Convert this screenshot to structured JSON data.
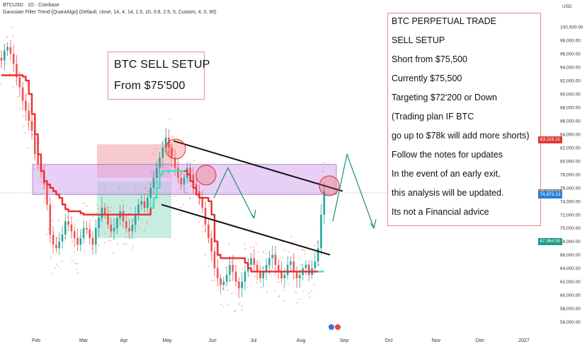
{
  "header": {
    "symbol_line": "BTCUSD · 1D · Coinbase",
    "indicator_line": "Gaussian Filter Trend [QuantAlgo] (Default, close, 14, 4, 14, 1.5, 10, 0.8, 2.5, 5, Custom, 4, 0, 90)"
  },
  "annotation_left": {
    "line1": "BTC SELL SETUP",
    "line2": "From $75'500"
  },
  "annotation_right": {
    "lines": [
      "BTC PERPETUAL TRADE",
      "SELL SETUP",
      "Short from $75,500",
      "Currently $75,500",
      "Targeting $72'200 or Down",
      "(Trading plan IF BTC",
      "go up to $78k will add more shorts)",
      "Follow the notes for updates",
      "In the event of an early exit,",
      "this analysis will be updated.",
      "Its not a Financial advice"
    ]
  },
  "price_tags": [
    {
      "label": "83,118.11",
      "value": 83118.11,
      "color": "#e03a3a"
    },
    {
      "label": "75,237.64",
      "value": 75237.64,
      "color": "#7d7d7d"
    },
    {
      "label": "74,973.13",
      "value": 74973.13,
      "color": "#2a7fd8"
    },
    {
      "label": "67,964.55",
      "value": 67964.55,
      "color": "#1a9c8a"
    }
  ],
  "colors": {
    "bull_candle": "#26a69a",
    "bear_candle": "#ef5350",
    "trend_down": "#e83030",
    "trend_up": "#39e6b0",
    "zone_fill": "#d7a8f0",
    "zone_border": "#7a2fb4",
    "projection": "#1e8c73"
  },
  "chart_data": {
    "type": "line",
    "y_axis": {
      "unit_label": "USD",
      "ticks": [
        "100,000.00",
        "98,000.00",
        "96,000.00",
        "94,000.00",
        "92,000.00",
        "90,000.00",
        "88,000.00",
        "86,000.00",
        "84,000.00",
        "82,000.00",
        "80,000.00",
        "78,000.00",
        "76,000.00",
        "74,000.00",
        "72,000.00",
        "70,000.00",
        "68,000.00",
        "66,000.00",
        "64,000.00",
        "62,000.00",
        "60,000.00",
        "58,000.00",
        "56,000.00"
      ],
      "range": [
        55000,
        101500
      ]
    },
    "x_axis": {
      "ticks": [
        "Feb",
        "Mar",
        "Apr",
        "May",
        "Jun",
        "Jul",
        "Aug",
        "Sep",
        "Oct",
        "Nov",
        "Dec",
        "2027"
      ]
    },
    "series": [
      {
        "role": "price_close_approx",
        "values": [
          95000,
          96500,
          97000,
          96000,
          94500,
          92500,
          91000,
          89000,
          87500,
          86000,
          84500,
          81000,
          79500,
          78500,
          76500,
          73500,
          69000,
          67500,
          67000,
          68000,
          69000,
          71000,
          70500,
          69500,
          68500,
          67500,
          68500,
          70000,
          69800,
          68500,
          67500,
          70000,
          71500,
          73000,
          72000,
          70500,
          69500,
          70000,
          71500,
          72500,
          71000,
          70000,
          69500,
          70500,
          72000,
          73500,
          74000,
          73000,
          74500,
          76000,
          77500,
          79000,
          80500,
          82000,
          83500,
          82000,
          80500,
          79000,
          77500,
          76500,
          77500,
          79000,
          78000,
          76500,
          75500,
          74500,
          73000,
          70500,
          68500,
          66500,
          64000,
          62500,
          61500,
          62000,
          63000,
          64500,
          63500,
          62000,
          61000,
          62000,
          63500,
          64500,
          65500,
          64500,
          63500,
          62500,
          63500,
          64500,
          65500,
          66000,
          64500,
          63500,
          62500,
          63000,
          64500,
          65000,
          63500,
          62500,
          63000,
          64000,
          64500,
          63000,
          64000,
          65000,
          67000,
          72000,
          75500
        ]
      },
      {
        "role": "gaussian_trend",
        "values": [
          92800,
          92800,
          92800,
          92800,
          92800,
          92800,
          92800,
          92600,
          92000,
          90000,
          87000,
          84000,
          81000,
          78500,
          77000,
          76500,
          76000,
          75500,
          75000,
          74500,
          73500,
          72800,
          72500,
          72500,
          72500,
          72500,
          72200,
          72000,
          72000,
          72000,
          72000,
          72000,
          72000,
          72000,
          72000,
          72000,
          72000,
          72000,
          72000,
          72000,
          72000,
          72000,
          72000,
          72000,
          72000,
          72000,
          72000,
          72000,
          72000,
          73000,
          74500,
          76000,
          78000,
          78500,
          78500,
          78500,
          78500,
          78500,
          78500,
          78500,
          78500,
          78000,
          77000,
          76000,
          75000,
          74500,
          74500,
          74500,
          74000,
          72000,
          68000,
          66000,
          65500,
          65500,
          65500,
          65500,
          65500,
          65500,
          65500,
          65500,
          64800,
          64000,
          63500,
          63500,
          63500,
          63500,
          63500,
          63500,
          63500,
          63500,
          63500,
          63500,
          63500,
          63500,
          63500,
          63500,
          63500,
          63500,
          63500,
          63500,
          63500,
          63500,
          63500,
          63500,
          63500,
          63500,
          63500
        ]
      }
    ],
    "zones": [
      {
        "role": "resistance_band",
        "from": 75000,
        "to": 79500
      },
      {
        "role": "pink_block",
        "from": 77500,
        "to": 82500
      },
      {
        "role": "green_block",
        "from": 68500,
        "to": 77000
      }
    ],
    "trendlines": [
      {
        "role": "upper_channel",
        "from": 83000,
        "to": 75500
      },
      {
        "role": "lower_channel",
        "from": 73500,
        "to": 66000
      }
    ]
  }
}
